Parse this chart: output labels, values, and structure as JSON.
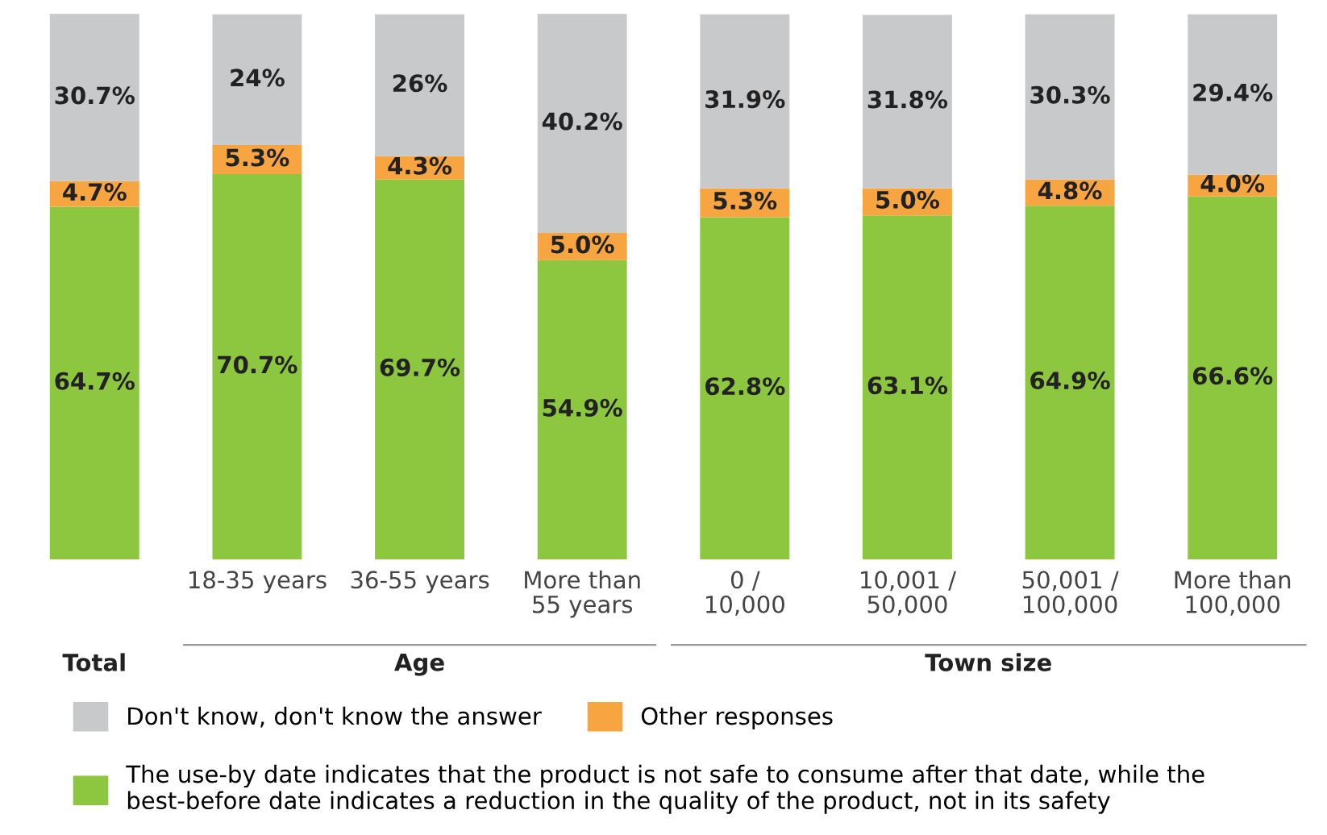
{
  "chart_data": {
    "type": "bar",
    "stacked": true,
    "data_labels": true,
    "legend": "bottom",
    "categories": [
      null,
      "18-35 years",
      "36-55 years",
      "More than 55 years",
      "0 / 10,000",
      "10,001 / 50,000",
      "50,001 / 100,000",
      "More than 100,000"
    ],
    "series": [
      {
        "name": "The use-by date indicates that the product is not safe to consume after that date, while the best-before date indicates a reduction in the quality of the product, not in its safety",
        "color": "#8dc63f",
        "values": [
          64.7,
          70.7,
          69.7,
          54.9,
          62.8,
          63.1,
          64.9,
          66.6
        ],
        "value_labels": [
          "64.7%",
          "70.7%",
          "69.7%",
          "54.9%",
          "62.8%",
          "63.1%",
          "64.9%",
          "66.6%"
        ]
      },
      {
        "name": "Other responses",
        "color": "#f7a541",
        "values": [
          4.7,
          5.3,
          4.3,
          5.0,
          5.3,
          5.0,
          4.8,
          4.0
        ],
        "value_labels": [
          "4.7%",
          "5.3%",
          "4.3%",
          "5.0%",
          "5.3%",
          "5.0%",
          "4.8%",
          "4.0%"
        ]
      },
      {
        "name": "Don't know, don't know the answer",
        "color": "#c8c9cb",
        "values": [
          30.7,
          24,
          26,
          40.2,
          31.9,
          31.8,
          30.3,
          29.4
        ],
        "value_labels": [
          "30.7%",
          "24%",
          "26%",
          "40.2%",
          "31.9%",
          "31.8%",
          "30.3%",
          "29.4%"
        ]
      }
    ],
    "annotations": [
      "Total",
      "Age",
      "Town size"
    ]
  }
}
